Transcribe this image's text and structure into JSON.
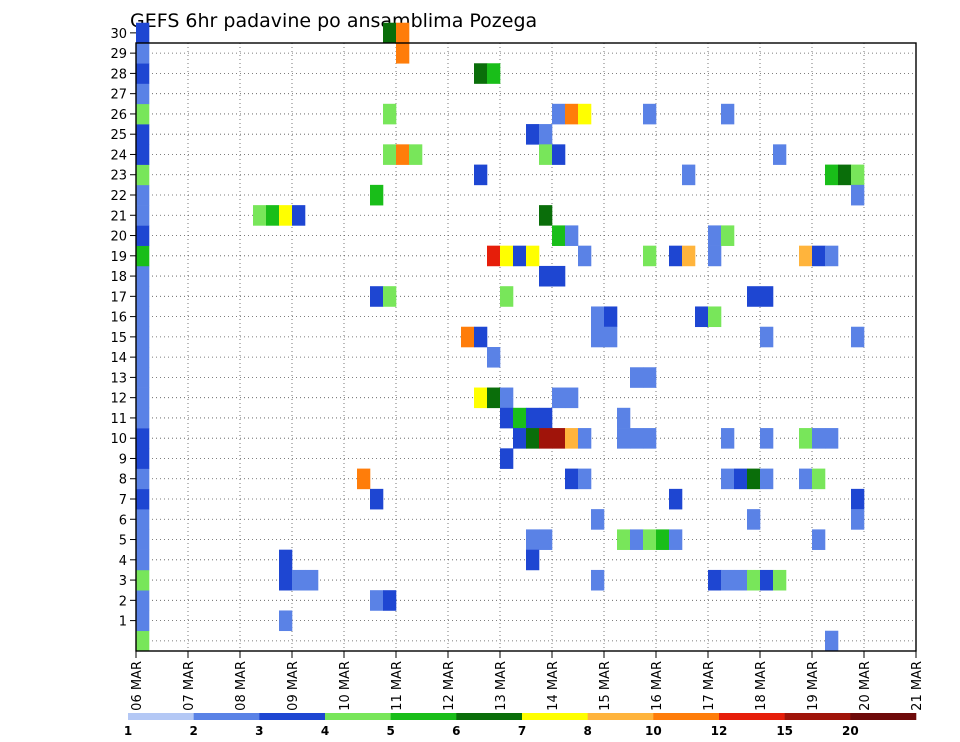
{
  "chart_data": {
    "type": "heatmap",
    "title": "GEFS 6hr padavine po ansamblima Pozega",
    "xlabel": "",
    "ylabel": "",
    "x_tick_labels": [
      "06 MAR",
      "07 MAR",
      "08 MAR",
      "09 MAR",
      "10 MAR",
      "11 MAR",
      "12 MAR",
      "13 MAR",
      "14 MAR",
      "15 MAR",
      "16 MAR",
      "17 MAR",
      "18 MAR",
      "19 MAR",
      "20 MAR",
      "21 MAR"
    ],
    "y_tick_labels": [
      "1",
      "2",
      "3",
      "4",
      "5",
      "6",
      "7",
      "8",
      "9",
      "10",
      "11",
      "12",
      "13",
      "14",
      "15",
      "16",
      "17",
      "18",
      "19",
      "20",
      "21",
      "22",
      "23",
      "24",
      "25",
      "26",
      "27",
      "28",
      "29",
      "30"
    ],
    "x_range": [
      0,
      60
    ],
    "y_range": [
      0,
      30
    ],
    "grid": true,
    "legend_position": "bottom",
    "colorbar": {
      "labels": [
        "1",
        "2",
        "3",
        "4",
        "5",
        "6",
        "7",
        "8",
        "10",
        "12",
        "15",
        "20"
      ],
      "colors": [
        "#b4c8f5",
        "#5a82e6",
        "#1e46d2",
        "#78e65a",
        "#19be19",
        "#0a6e0a",
        "#ffff00",
        "#ffb43c",
        "#ff7d0a",
        "#e61e0a",
        "#a0140a",
        "#6e0a0a"
      ]
    },
    "cells": [
      [
        0,
        0,
        3
      ],
      [
        0,
        1,
        1
      ],
      [
        0,
        2,
        1
      ],
      [
        0,
        3,
        3
      ],
      [
        0,
        4,
        1
      ],
      [
        0,
        5,
        1
      ],
      [
        0,
        6,
        1
      ],
      [
        0,
        7,
        2
      ],
      [
        0,
        8,
        1
      ],
      [
        0,
        9,
        2
      ],
      [
        0,
        10,
        2
      ],
      [
        0,
        11,
        1
      ],
      [
        0,
        12,
        1
      ],
      [
        0,
        13,
        1
      ],
      [
        0,
        14,
        1
      ],
      [
        0,
        15,
        1
      ],
      [
        0,
        16,
        1
      ],
      [
        0,
        17,
        1
      ],
      [
        0,
        18,
        1
      ],
      [
        0,
        19,
        4
      ],
      [
        0,
        20,
        2
      ],
      [
        0,
        21,
        1
      ],
      [
        0,
        22,
        1
      ],
      [
        0,
        23,
        3
      ],
      [
        0,
        24,
        2
      ],
      [
        0,
        25,
        2
      ],
      [
        0,
        26,
        3
      ],
      [
        0,
        27,
        1
      ],
      [
        0,
        28,
        2
      ],
      [
        0,
        29,
        1
      ],
      [
        0,
        30,
        2
      ],
      [
        9,
        21,
        3
      ],
      [
        10,
        21,
        4
      ],
      [
        11,
        21,
        6
      ],
      [
        12,
        21,
        2
      ],
      [
        11,
        4,
        2
      ],
      [
        11,
        3,
        2
      ],
      [
        11,
        1,
        1
      ],
      [
        12,
        3,
        1
      ],
      [
        13,
        3,
        1
      ],
      [
        17,
        8,
        8
      ],
      [
        18,
        22,
        4
      ],
      [
        18,
        17,
        2
      ],
      [
        18,
        7,
        2
      ],
      [
        18,
        2,
        1
      ],
      [
        19,
        30,
        5
      ],
      [
        19,
        26,
        3
      ],
      [
        19,
        24,
        3
      ],
      [
        19,
        17,
        3
      ],
      [
        19,
        2,
        2
      ],
      [
        20,
        29,
        8
      ],
      [
        20,
        30,
        8
      ],
      [
        20,
        24,
        8
      ],
      [
        21,
        24,
        3
      ],
      [
        25,
        15,
        8
      ],
      [
        26,
        28,
        5
      ],
      [
        26,
        23,
        2
      ],
      [
        26,
        15,
        2
      ],
      [
        26,
        12,
        6
      ],
      [
        27,
        28,
        4
      ],
      [
        27,
        19,
        9
      ],
      [
        27,
        14,
        1
      ],
      [
        27,
        12,
        5
      ],
      [
        28,
        19,
        6
      ],
      [
        28,
        17,
        3
      ],
      [
        28,
        12,
        1
      ],
      [
        28,
        11,
        2
      ],
      [
        28,
        9,
        2
      ],
      [
        29,
        19,
        2
      ],
      [
        29,
        11,
        4
      ],
      [
        29,
        10,
        2
      ],
      [
        30,
        25,
        2
      ],
      [
        30,
        19,
        6
      ],
      [
        30,
        11,
        2
      ],
      [
        30,
        10,
        5
      ],
      [
        30,
        5,
        1
      ],
      [
        30,
        4,
        2
      ],
      [
        31,
        25,
        1
      ],
      [
        31,
        24,
        3
      ],
      [
        31,
        21,
        5
      ],
      [
        31,
        18,
        2
      ],
      [
        31,
        11,
        2
      ],
      [
        31,
        10,
        10
      ],
      [
        31,
        5,
        1
      ],
      [
        32,
        26,
        1
      ],
      [
        32,
        24,
        2
      ],
      [
        32,
        20,
        4
      ],
      [
        32,
        18,
        2
      ],
      [
        32,
        12,
        1
      ],
      [
        32,
        10,
        10
      ],
      [
        33,
        26,
        8
      ],
      [
        33,
        20,
        1
      ],
      [
        33,
        12,
        1
      ],
      [
        33,
        10,
        7
      ],
      [
        33,
        8,
        2
      ],
      [
        34,
        26,
        6
      ],
      [
        34,
        19,
        1
      ],
      [
        34,
        10,
        1
      ],
      [
        34,
        8,
        1
      ],
      [
        35,
        16,
        1
      ],
      [
        35,
        15,
        1
      ],
      [
        35,
        6,
        1
      ],
      [
        35,
        3,
        1
      ],
      [
        36,
        16,
        2
      ],
      [
        36,
        15,
        1
      ],
      [
        37,
        11,
        1
      ],
      [
        37,
        10,
        1
      ],
      [
        37,
        5,
        3
      ],
      [
        38,
        13,
        1
      ],
      [
        38,
        10,
        1
      ],
      [
        38,
        5,
        1
      ],
      [
        39,
        26,
        1
      ],
      [
        39,
        19,
        3
      ],
      [
        39,
        13,
        1
      ],
      [
        39,
        10,
        1
      ],
      [
        39,
        5,
        3
      ],
      [
        40,
        5,
        4
      ],
      [
        41,
        19,
        2
      ],
      [
        41,
        7,
        2
      ],
      [
        41,
        5,
        1
      ],
      [
        42,
        23,
        1
      ],
      [
        42,
        19,
        7
      ],
      [
        43,
        16,
        2
      ],
      [
        44,
        20,
        1
      ],
      [
        44,
        19,
        1
      ],
      [
        44,
        16,
        3
      ],
      [
        44,
        3,
        2
      ],
      [
        45,
        26,
        1
      ],
      [
        45,
        20,
        3
      ],
      [
        45,
        10,
        1
      ],
      [
        45,
        8,
        1
      ],
      [
        45,
        3,
        1
      ],
      [
        46,
        8,
        2
      ],
      [
        46,
        3,
        1
      ],
      [
        47,
        17,
        2
      ],
      [
        47,
        8,
        5
      ],
      [
        47,
        6,
        1
      ],
      [
        47,
        3,
        3
      ],
      [
        48,
        17,
        2
      ],
      [
        48,
        15,
        1
      ],
      [
        48,
        10,
        1
      ],
      [
        48,
        8,
        1
      ],
      [
        48,
        3,
        2
      ],
      [
        49,
        24,
        1
      ],
      [
        49,
        3,
        3
      ],
      [
        51,
        19,
        7
      ],
      [
        51,
        10,
        3
      ],
      [
        51,
        8,
        1
      ],
      [
        52,
        19,
        2
      ],
      [
        52,
        10,
        1
      ],
      [
        52,
        8,
        3
      ],
      [
        52,
        5,
        1
      ],
      [
        53,
        23,
        4
      ],
      [
        53,
        19,
        1
      ],
      [
        53,
        10,
        1
      ],
      [
        53,
        0,
        1
      ],
      [
        54,
        23,
        5
      ],
      [
        55,
        23,
        3
      ],
      [
        55,
        22,
        1
      ],
      [
        55,
        15,
        1
      ],
      [
        55,
        7,
        2
      ],
      [
        55,
        6,
        1
      ]
    ]
  }
}
